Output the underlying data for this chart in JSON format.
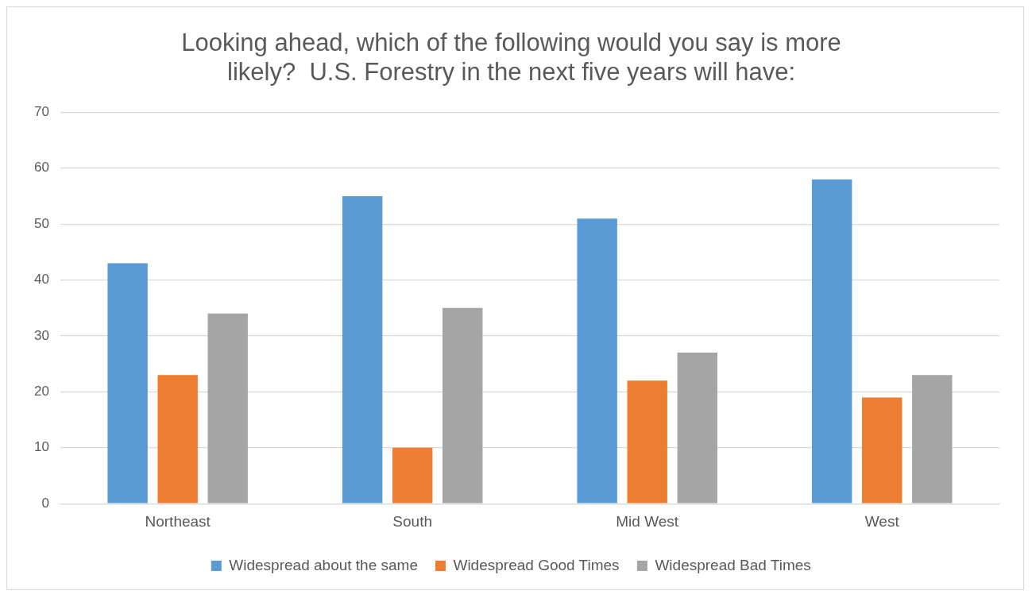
{
  "chart_data": {
    "type": "bar",
    "title": "Looking ahead, which of the following would you say is more likely?  U.S. Forestry in the next five years will have:",
    "categories": [
      "Northeast",
      "South",
      "Mid West",
      "West"
    ],
    "series": [
      {
        "name": "Widespread about the same",
        "color": "#5b9bd5",
        "values": [
          43,
          55,
          51,
          58
        ]
      },
      {
        "name": "Widespread Good Times",
        "color": "#ed7d31",
        "values": [
          23,
          10,
          22,
          19
        ]
      },
      {
        "name": "Widespread Bad Times",
        "color": "#a5a5a5",
        "values": [
          34,
          35,
          27,
          23
        ]
      }
    ],
    "ylim": [
      0,
      70
    ],
    "yticks": [
      0,
      10,
      20,
      30,
      40,
      50,
      60,
      70
    ],
    "grid": "y",
    "legend": "bottom"
  }
}
